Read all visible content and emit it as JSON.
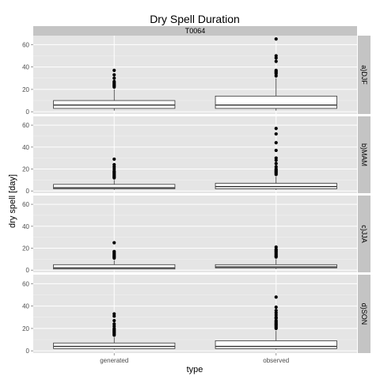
{
  "chart_data": {
    "type": "boxplot",
    "title": "Dry Spell Duration",
    "xlabel": "type",
    "ylabel": "dry spell [day]",
    "facet_top": "T0064",
    "categories": [
      "generated",
      "observed"
    ],
    "ylim": [
      -2,
      68
    ],
    "yticks": [
      0,
      20,
      40,
      60
    ],
    "grid": true,
    "colors": {
      "panel_bg": "#e5e5e5",
      "grid_major": "#ffffff",
      "strip_bg": "#c4c4c4",
      "box_fill": "#ffffff",
      "box_stroke": "#333333",
      "outlier": "#000000"
    },
    "panels": [
      {
        "label": "a)DJF",
        "boxes": [
          {
            "category": "generated",
            "min": 1,
            "q1": 3,
            "median": 6,
            "q3": 10,
            "max": 20,
            "outliers": [
              22,
              23,
              24,
              25,
              26,
              27,
              30,
              33,
              37
            ]
          },
          {
            "category": "observed",
            "min": 1,
            "q1": 3,
            "median": 6,
            "q3": 14,
            "max": 30,
            "outliers": [
              32,
              34,
              35,
              36,
              37,
              45,
              48,
              50,
              65
            ]
          }
        ]
      },
      {
        "label": "b)MAM",
        "boxes": [
          {
            "category": "generated",
            "min": 1,
            "q1": 2,
            "median": 3,
            "q3": 6,
            "max": 10,
            "outliers": [
              12,
              13,
              14,
              15,
              16,
              17,
              18,
              20,
              22,
              24,
              29
            ]
          },
          {
            "category": "observed",
            "min": 1,
            "q1": 2,
            "median": 4,
            "q3": 7,
            "max": 13,
            "outliers": [
              15,
              16,
              17,
              18,
              19,
              20,
              22,
              25,
              28,
              30,
              37,
              44,
              52,
              57
            ]
          }
        ]
      },
      {
        "label": "c)JJA",
        "boxes": [
          {
            "category": "generated",
            "min": 1,
            "q1": 1,
            "median": 2,
            "q3": 5,
            "max": 9,
            "outliers": [
              11,
              12,
              13,
              14,
              15,
              16,
              17,
              25
            ]
          },
          {
            "category": "observed",
            "min": 1,
            "q1": 2,
            "median": 3,
            "q3": 5,
            "max": 10,
            "outliers": [
              12,
              13,
              14,
              15,
              16,
              17,
              18,
              19,
              21
            ]
          }
        ]
      },
      {
        "label": "d)SON",
        "boxes": [
          {
            "category": "generated",
            "min": 1,
            "q1": 2,
            "median": 4,
            "q3": 7,
            "max": 12,
            "outliers": [
              14,
              15,
              16,
              17,
              18,
              19,
              20,
              22,
              24,
              27,
              31,
              33
            ]
          },
          {
            "category": "observed",
            "min": 1,
            "q1": 2,
            "median": 4,
            "q3": 9,
            "max": 18,
            "outliers": [
              20,
              21,
              22,
              23,
              24,
              25,
              26,
              27,
              29,
              30,
              32,
              34,
              36,
              39,
              48
            ]
          }
        ]
      }
    ]
  }
}
